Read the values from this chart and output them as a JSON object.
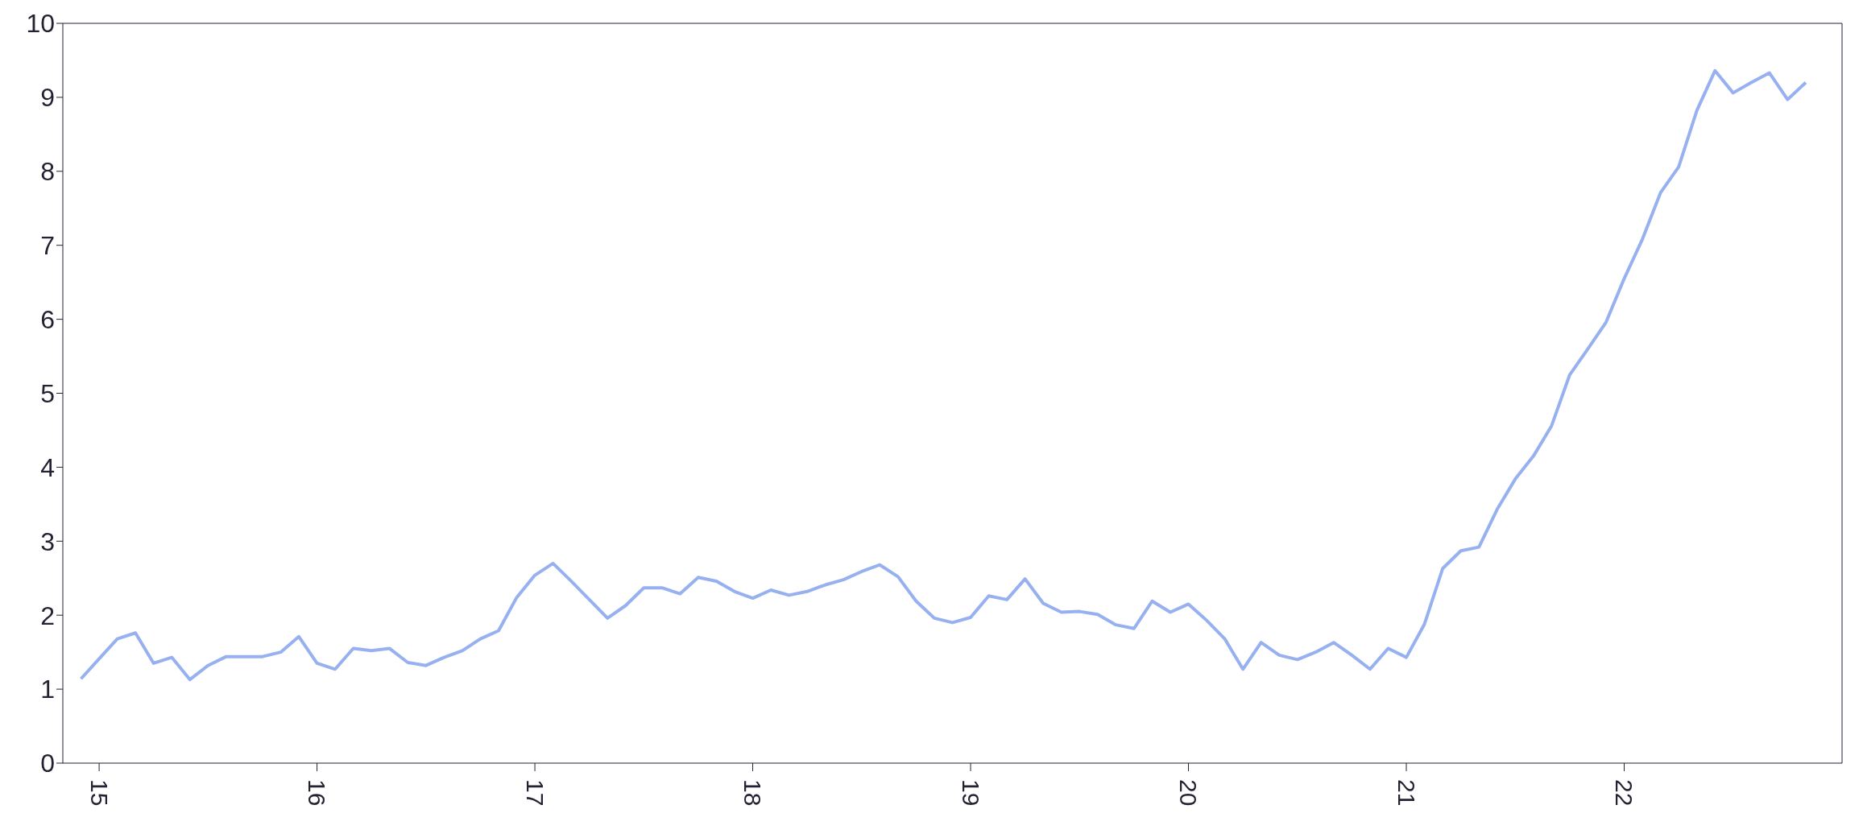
{
  "chart_data": {
    "type": "line",
    "x": [
      "2014-12",
      "2015-01",
      "2015-02",
      "2015-03",
      "2015-04",
      "2015-05",
      "2015-06",
      "2015-07",
      "2015-08",
      "2015-09",
      "2015-10",
      "2015-11",
      "2015-12",
      "2016-01",
      "2016-02",
      "2016-03",
      "2016-04",
      "2016-05",
      "2016-06",
      "2016-07",
      "2016-08",
      "2016-09",
      "2016-10",
      "2016-11",
      "2016-12",
      "2017-01",
      "2017-02",
      "2017-03",
      "2017-04",
      "2017-05",
      "2017-06",
      "2017-07",
      "2017-08",
      "2017-09",
      "2017-10",
      "2017-11",
      "2017-12",
      "2018-01",
      "2018-02",
      "2018-03",
      "2018-04",
      "2018-05",
      "2018-06",
      "2018-07",
      "2018-08",
      "2018-09",
      "2018-10",
      "2018-11",
      "2018-12",
      "2019-01",
      "2019-02",
      "2019-03",
      "2019-04",
      "2019-05",
      "2019-06",
      "2019-07",
      "2019-08",
      "2019-09",
      "2019-10",
      "2019-11",
      "2019-12",
      "2020-01",
      "2020-02",
      "2020-03",
      "2020-04",
      "2020-05",
      "2020-06",
      "2020-07",
      "2020-08",
      "2020-09",
      "2020-10",
      "2020-11",
      "2020-12",
      "2021-01",
      "2021-02",
      "2021-03",
      "2021-04",
      "2021-05",
      "2021-06",
      "2021-07",
      "2021-08",
      "2021-09",
      "2021-10",
      "2021-11",
      "2021-12",
      "2022-01",
      "2022-02",
      "2022-03",
      "2022-04",
      "2022-05",
      "2022-06",
      "2022-07",
      "2022-08",
      "2022-09",
      "2022-10",
      "2022-11"
    ],
    "series": [
      {
        "color": "#97b1f0",
        "values": [
          1.14,
          1.41,
          1.68,
          1.76,
          1.35,
          1.43,
          1.13,
          1.32,
          1.44,
          1.44,
          1.44,
          1.5,
          1.71,
          1.35,
          1.27,
          1.55,
          1.52,
          1.55,
          1.36,
          1.32,
          1.43,
          1.52,
          1.68,
          1.79,
          2.24,
          2.54,
          2.7,
          2.46,
          2.21,
          1.96,
          2.13,
          2.37,
          2.37,
          2.29,
          2.51,
          2.46,
          2.32,
          2.23,
          2.34,
          2.27,
          2.32,
          2.41,
          2.48,
          2.59,
          2.68,
          2.52,
          2.19,
          1.96,
          1.9,
          1.97,
          2.26,
          2.21,
          2.49,
          2.16,
          2.04,
          2.05,
          2.01,
          1.87,
          1.82,
          2.19,
          2.04,
          2.15,
          1.93,
          1.68,
          1.27,
          1.63,
          1.46,
          1.4,
          1.5,
          1.63,
          1.46,
          1.27,
          1.55,
          1.43,
          1.88,
          2.63,
          2.87,
          2.92,
          3.43,
          3.84,
          4.15,
          4.56,
          5.25,
          5.6,
          5.96,
          6.55,
          7.08,
          7.71,
          8.06,
          8.82,
          9.36,
          9.06,
          9.2,
          9.33,
          8.97,
          9.2
        ]
      }
    ],
    "xlim": [
      "2014-11",
      "2023-01"
    ],
    "xticks": [
      {
        "value": "2015",
        "label": "15"
      },
      {
        "value": "2016",
        "label": "16"
      },
      {
        "value": "2017",
        "label": "17"
      },
      {
        "value": "2018",
        "label": "18"
      },
      {
        "value": "2019",
        "label": "19"
      },
      {
        "value": "2020",
        "label": "20"
      },
      {
        "value": "2021",
        "label": "21"
      },
      {
        "value": "2022",
        "label": "22"
      }
    ],
    "ylim": [
      0,
      10
    ],
    "yticks": [
      0,
      1,
      2,
      3,
      4,
      5,
      6,
      7,
      8,
      9,
      10
    ],
    "marker": "none",
    "line_style": "solid"
  }
}
